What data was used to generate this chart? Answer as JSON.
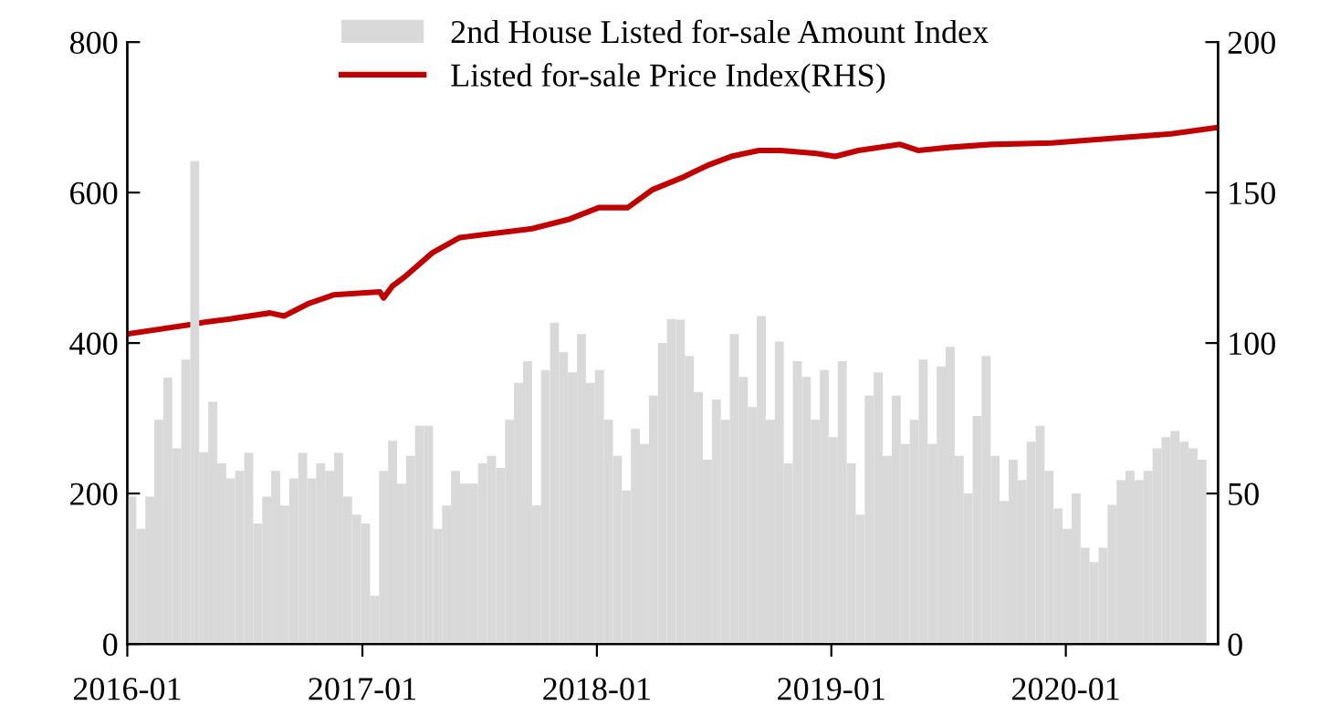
{
  "chart_data": {
    "type": "bar",
    "x": [
      "2016-01-08",
      "2016-01-22",
      "2016-02-05",
      "2016-02-19",
      "2016-03-04",
      "2016-03-18",
      "2016-04-01",
      "2016-04-15",
      "2016-04-29",
      "2016-05-13",
      "2016-05-27",
      "2016-06-10",
      "2016-06-24",
      "2016-07-08",
      "2016-07-22",
      "2016-08-05",
      "2016-08-19",
      "2016-09-02",
      "2016-09-16",
      "2016-09-30",
      "2016-10-14",
      "2016-10-28",
      "2016-11-11",
      "2016-11-25",
      "2016-12-09",
      "2016-12-23",
      "2017-01-06",
      "2017-01-20",
      "2017-02-03",
      "2017-02-17",
      "2017-03-03",
      "2017-03-17",
      "2017-03-31",
      "2017-04-14",
      "2017-04-28",
      "2017-05-12",
      "2017-05-26",
      "2017-06-09",
      "2017-06-23",
      "2017-07-07",
      "2017-07-21",
      "2017-08-04",
      "2017-08-18",
      "2017-09-01",
      "2017-09-15",
      "2017-09-29",
      "2017-10-13",
      "2017-10-27",
      "2017-11-10",
      "2017-11-24",
      "2017-12-08",
      "2017-12-22",
      "2018-01-05",
      "2018-01-19",
      "2018-02-02",
      "2018-02-16",
      "2018-03-02",
      "2018-03-16",
      "2018-03-30",
      "2018-04-13",
      "2018-04-27",
      "2018-05-11",
      "2018-05-25",
      "2018-06-08",
      "2018-06-22",
      "2018-07-06",
      "2018-07-20",
      "2018-08-03",
      "2018-08-17",
      "2018-08-31",
      "2018-09-14",
      "2018-09-28",
      "2018-10-12",
      "2018-10-26",
      "2018-11-09",
      "2018-11-23",
      "2018-12-07",
      "2018-12-21",
      "2019-01-04",
      "2019-01-18",
      "2019-02-01",
      "2019-02-15",
      "2019-03-01",
      "2019-03-15",
      "2019-03-29",
      "2019-04-12",
      "2019-04-26",
      "2019-05-10",
      "2019-05-24",
      "2019-06-07",
      "2019-06-21",
      "2019-07-05",
      "2019-07-19",
      "2019-08-02",
      "2019-08-16",
      "2019-08-30",
      "2019-09-13",
      "2019-09-27",
      "2019-10-11",
      "2019-10-25",
      "2019-11-08",
      "2019-11-22",
      "2019-12-06",
      "2019-12-20",
      "2020-01-03",
      "2020-01-17",
      "2020-01-31",
      "2020-02-14",
      "2020-02-28",
      "2020-03-13",
      "2020-03-27",
      "2020-04-10",
      "2020-04-24",
      "2020-05-08",
      "2020-05-22",
      "2020-06-05",
      "2020-06-19",
      "2020-07-03",
      "2020-07-17",
      "2020-07-31"
    ],
    "series": [
      {
        "name": "2nd House Listed for-sale Amount Index",
        "color": "#d9d9d9",
        "values": [
          196,
          153,
          196,
          298,
          354,
          260,
          378,
          642,
          255,
          322,
          240,
          220,
          230,
          254,
          160,
          196,
          230,
          184,
          220,
          254,
          220,
          240,
          230,
          254,
          196,
          172,
          160,
          64,
          230,
          270,
          213,
          250,
          290,
          290,
          153,
          184,
          230,
          213,
          213,
          240,
          250,
          234,
          298,
          347,
          376,
          184,
          364,
          427,
          388,
          361,
          412,
          347,
          364,
          298,
          250,
          204,
          286,
          266,
          330,
          400,
          432,
          431,
          383,
          335,
          245,
          325,
          298,
          412,
          355,
          315,
          436,
          298,
          402,
          240,
          376,
          355,
          298,
          364,
          275,
          376,
          240,
          172,
          330,
          361,
          250,
          330,
          266,
          298,
          378,
          266,
          369,
          395,
          250,
          200,
          303,
          383,
          250,
          190,
          245,
          218,
          269,
          290,
          230,
          180,
          153,
          200,
          128,
          109,
          128,
          185,
          218,
          230,
          218,
          230,
          260,
          275,
          283,
          269,
          260,
          245
        ]
      },
      {
        "name": "Listed for-sale Price Index(RHS)",
        "type": "line",
        "axis": "y2",
        "color": "#c00000",
        "x": [
          "2016-01-01",
          "2016-04-05",
          "2016-05-03",
          "2016-06-09",
          "2016-08-10",
          "2016-09-01",
          "2016-10-08",
          "2016-11-17",
          "2017-01-28",
          "2017-02-03",
          "2017-02-17",
          "2017-03-08",
          "2017-04-20",
          "2017-06-01",
          "2017-07-08",
          "2017-08-16",
          "2017-09-22",
          "2017-11-17",
          "2018-01-04",
          "2018-02-18",
          "2018-03-29",
          "2018-05-14",
          "2018-06-22",
          "2018-07-29",
          "2018-09-10",
          "2018-10-14",
          "2018-12-09",
          "2019-01-07",
          "2019-02-12",
          "2019-04-18",
          "2019-05-16",
          "2019-07-03",
          "2019-09-06",
          "2019-12-10",
          "2020-03-12",
          "2020-06-13",
          "2020-08-20"
        ],
        "values": [
          103,
          106,
          107,
          108,
          110,
          109,
          113,
          116,
          117,
          115,
          119,
          122,
          130,
          135,
          136,
          137,
          138,
          141,
          145,
          145,
          151,
          155,
          159,
          162,
          164,
          164,
          163,
          162,
          164,
          166,
          164,
          165,
          166,
          166.5,
          168,
          169.5,
          171.5
        ]
      }
    ],
    "xlim": [
      "2016-01-01",
      "2020-08-25"
    ],
    "xticks": [
      {
        "value": "2016-01-01",
        "label": "2016-01"
      },
      {
        "value": "2017-01-01",
        "label": "2017-01"
      },
      {
        "value": "2018-01-01",
        "label": "2018-01"
      },
      {
        "value": "2019-01-01",
        "label": "2019-01"
      },
      {
        "value": "2020-01-01",
        "label": "2020-01"
      }
    ],
    "ylim": [
      0,
      800
    ],
    "yticks": [
      0,
      200,
      400,
      600,
      800
    ],
    "y2lim": [
      0,
      200
    ],
    "y2ticks": [
      0,
      50,
      100,
      150,
      200
    ],
    "grid": false,
    "legend": "top left"
  }
}
